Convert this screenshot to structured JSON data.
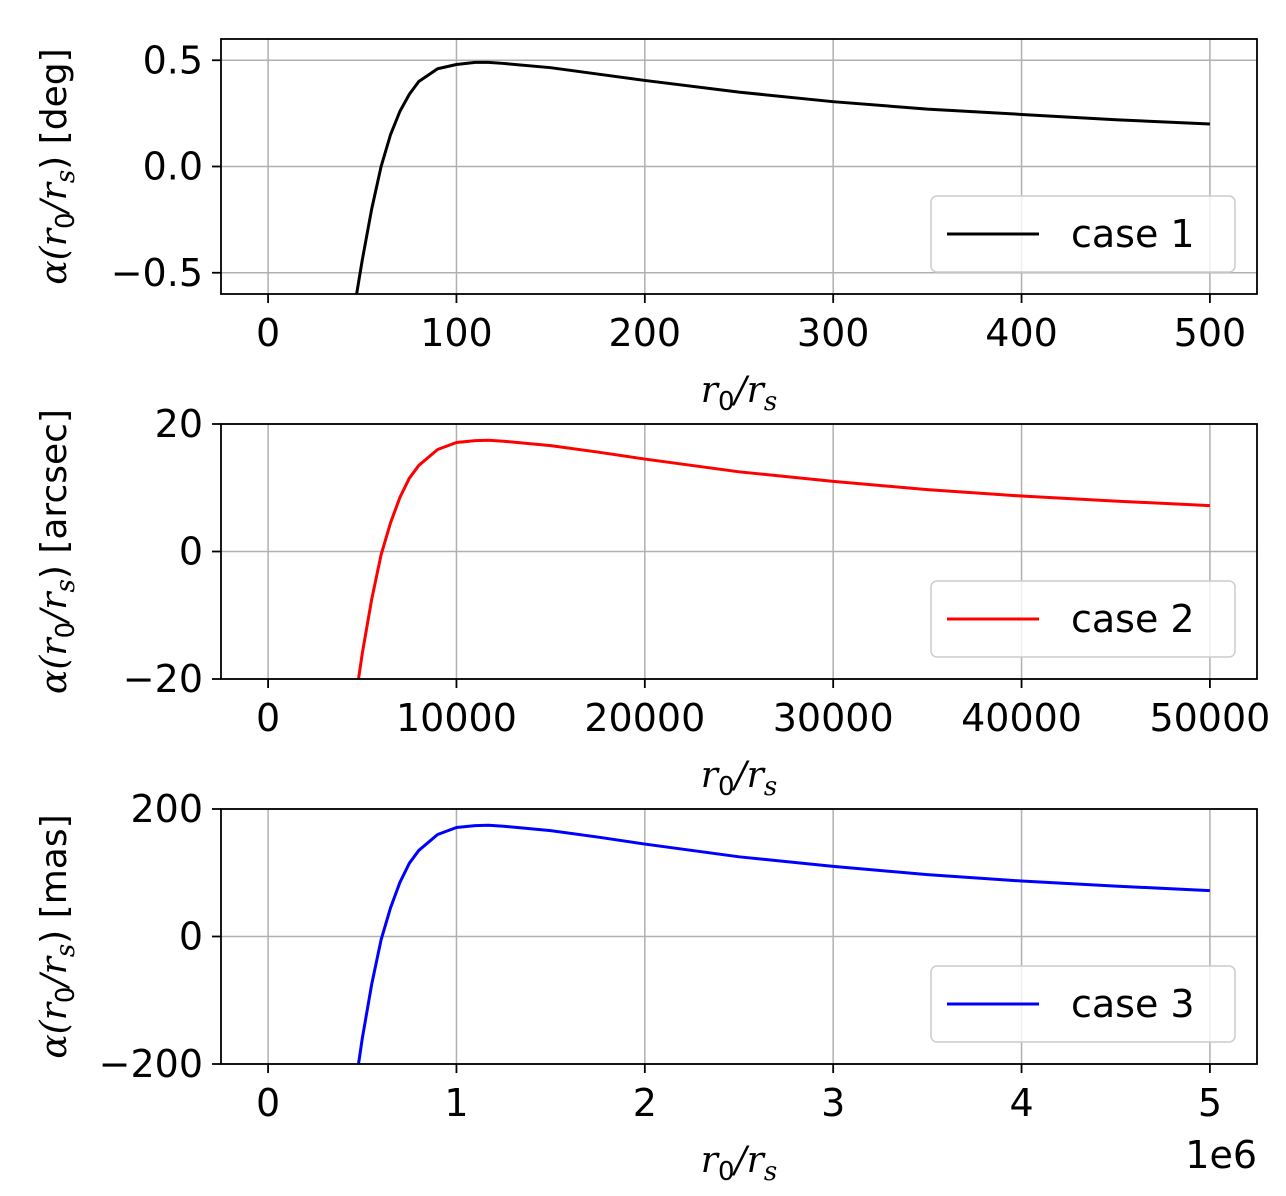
{
  "chart_data": [
    {
      "type": "line",
      "xlabel_prefix": "r",
      "xlabel_sub": "0",
      "xlabel_mid": "/r",
      "xlabel_sub2": "s",
      "ylabel_math": "α(r",
      "ylabel_sub": "0",
      "ylabel_mid": "/r",
      "ylabel_sub2": "s",
      "ylabel_unit": ") [deg]",
      "xlim": [
        -25,
        525
      ],
      "ylim": [
        -0.6,
        0.6
      ],
      "xticks": [
        0,
        100,
        200,
        300,
        400,
        500
      ],
      "xtick_labels": [
        "0",
        "100",
        "200",
        "300",
        "400",
        "500"
      ],
      "yticks": [
        -0.5,
        0.0,
        0.5
      ],
      "ytick_labels": [
        "−0.5",
        "0.0",
        "0.5"
      ],
      "grid": true,
      "legend_position": "lower right",
      "offset_label": "",
      "series": [
        {
          "name": "case 1",
          "color": "#000000",
          "x": [
            47,
            50,
            55,
            60,
            65,
            70,
            75,
            80,
            90,
            100,
            110,
            117,
            125,
            150,
            175,
            200,
            250,
            300,
            350,
            400,
            450,
            500
          ],
          "y": [
            -0.6,
            -0.44,
            -0.2,
            0.0,
            0.15,
            0.26,
            0.34,
            0.4,
            0.46,
            0.48,
            0.49,
            0.49,
            0.485,
            0.465,
            0.435,
            0.405,
            0.35,
            0.305,
            0.27,
            0.245,
            0.22,
            0.2
          ]
        }
      ]
    },
    {
      "type": "line",
      "xlabel_prefix": "r",
      "xlabel_sub": "0",
      "xlabel_mid": "/r",
      "xlabel_sub2": "s",
      "ylabel_math": "α(r",
      "ylabel_sub": "0",
      "ylabel_mid": "/r",
      "ylabel_sub2": "s",
      "ylabel_unit": ") [arcsec]",
      "xlim": [
        -2500,
        52500
      ],
      "ylim": [
        -20,
        20
      ],
      "xticks": [
        0,
        10000,
        20000,
        30000,
        40000,
        50000
      ],
      "xtick_labels": [
        "0",
        "10000",
        "20000",
        "30000",
        "40000",
        "50000"
      ],
      "yticks": [
        -20,
        0,
        20
      ],
      "ytick_labels": [
        "−20",
        "0",
        "20"
      ],
      "grid": true,
      "legend_position": "lower right",
      "offset_label": "",
      "series": [
        {
          "name": "case 2",
          "color": "#ff0000",
          "x": [
            4800,
            5000,
            5500,
            6000,
            6500,
            7000,
            7500,
            8000,
            9000,
            10000,
            11000,
            11700,
            12500,
            15000,
            17500,
            20000,
            25000,
            30000,
            35000,
            40000,
            45000,
            50000
          ],
          "y": [
            -20,
            -16,
            -7.5,
            -0.5,
            4.5,
            8.5,
            11.5,
            13.5,
            16,
            17.1,
            17.4,
            17.45,
            17.3,
            16.6,
            15.6,
            14.5,
            12.5,
            11,
            9.7,
            8.7,
            7.9,
            7.2
          ]
        }
      ]
    },
    {
      "type": "line",
      "xlabel_prefix": "r",
      "xlabel_sub": "0",
      "xlabel_mid": "/r",
      "xlabel_sub2": "s",
      "ylabel_math": "α(r",
      "ylabel_sub": "0",
      "ylabel_mid": "/r",
      "ylabel_sub2": "s",
      "ylabel_unit": ") [mas]",
      "xlim": [
        -250000,
        5250000
      ],
      "ylim": [
        -200,
        200
      ],
      "xticks": [
        0,
        1000000,
        2000000,
        3000000,
        4000000,
        5000000
      ],
      "xtick_labels": [
        "0",
        "1",
        "2",
        "3",
        "4",
        "5"
      ],
      "yticks": [
        -200,
        0,
        200
      ],
      "ytick_labels": [
        "−200",
        "0",
        "200"
      ],
      "grid": true,
      "legend_position": "lower right",
      "offset_label": "1e6",
      "series": [
        {
          "name": "case 3",
          "color": "#0000ff",
          "x": [
            480000,
            500000,
            550000,
            600000,
            650000,
            700000,
            750000,
            800000,
            900000,
            1000000,
            1100000,
            1170000,
            1250000,
            1500000,
            1750000,
            2000000,
            2500000,
            3000000,
            3500000,
            4000000,
            4500000,
            5000000
          ],
          "y": [
            -200,
            -160,
            -75,
            -5,
            45,
            85,
            115,
            135,
            160,
            171,
            174,
            174.5,
            173,
            166,
            156,
            145,
            125,
            110,
            97,
            87,
            79,
            72
          ]
        }
      ]
    }
  ]
}
